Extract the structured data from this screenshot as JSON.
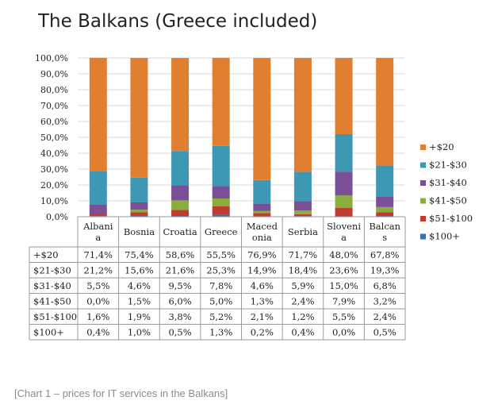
{
  "page": {
    "title": "The Balkans (Greece included)",
    "caption": "[Chart 1 – prices for IT services in the Balkans]"
  },
  "colors": {
    "+$20": "#e07f30",
    "$21-$30": "#3d98b5",
    "$31-$40": "#7b4f96",
    "$41-$50": "#8aad3c",
    "$51-$100": "#c13b30",
    "$100+": "#3c6fb0"
  },
  "chart_data": {
    "type": "bar",
    "stacked": true,
    "normalized": true,
    "categories": [
      "Albania",
      "Bosnia",
      "Croatia",
      "Greece",
      "Macedonia",
      "Serbia",
      "Slovenia",
      "Balcans"
    ],
    "category_labels": [
      [
        "Albani",
        "a"
      ],
      [
        "Bosnia"
      ],
      [
        "Croatia"
      ],
      [
        "Greece"
      ],
      [
        "Maced",
        "onia"
      ],
      [
        "Serbia"
      ],
      [
        "Sloveni",
        "a"
      ],
      [
        "Balcan",
        "s"
      ]
    ],
    "yticks": [
      "0,0%",
      "10,0%",
      "20,0%",
      "30,0%",
      "40,0%",
      "50,0%",
      "60,0%",
      "70,0%",
      "80,0%",
      "90,0%",
      "100,0%"
    ],
    "ylim": [
      0,
      100
    ],
    "grid": true,
    "legend_position": "right",
    "series": [
      {
        "name": "$100+",
        "values": [
          0.4,
          1.0,
          0.5,
          1.3,
          0.2,
          0.4,
          0.0,
          0.5
        ],
        "labels": [
          "0,4%",
          "1,0%",
          "0,5%",
          "1,3%",
          "0,2%",
          "0,4%",
          "0,0%",
          "0,5%"
        ]
      },
      {
        "name": "$51-$100",
        "values": [
          1.6,
          1.9,
          3.8,
          5.2,
          2.1,
          1.2,
          5.5,
          2.4
        ],
        "labels": [
          "1,6%",
          "1,9%",
          "3,8%",
          "5,2%",
          "2,1%",
          "1,2%",
          "5,5%",
          "2,4%"
        ]
      },
      {
        "name": "$41-$50",
        "values": [
          0.0,
          1.5,
          6.0,
          5.0,
          1.3,
          2.4,
          7.9,
          3.2
        ],
        "labels": [
          "0,0%",
          "1,5%",
          "6,0%",
          "5,0%",
          "1,3%",
          "2,4%",
          "7,9%",
          "3,2%"
        ]
      },
      {
        "name": "$31-$40",
        "values": [
          5.5,
          4.6,
          9.5,
          7.8,
          4.6,
          5.9,
          15.0,
          6.8
        ],
        "labels": [
          "5,5%",
          "4,6%",
          "9,5%",
          "7,8%",
          "4,6%",
          "5,9%",
          "15,0%",
          "6,8%"
        ]
      },
      {
        "name": "$21-$30",
        "values": [
          21.2,
          15.6,
          21.6,
          25.3,
          14.9,
          18.4,
          23.6,
          19.3
        ],
        "labels": [
          "21,2%",
          "15,6%",
          "21,6%",
          "25,3%",
          "14,9%",
          "18,4%",
          "23,6%",
          "19,3%"
        ]
      },
      {
        "name": "+$20",
        "values": [
          71.4,
          75.4,
          58.6,
          55.5,
          76.9,
          71.7,
          48.0,
          67.8
        ],
        "labels": [
          "71,4%",
          "75,4%",
          "58,6%",
          "55,5%",
          "76,9%",
          "71,7%",
          "48,0%",
          "67,8%"
        ]
      }
    ],
    "table_row_order": [
      "+$20",
      "$21-$30",
      "$31-$40",
      "$41-$50",
      "$51-$100",
      "$100+"
    ],
    "legend_order": [
      "+$20",
      "$21-$30",
      "$31-$40",
      "$41-$50",
      "$51-$100",
      "$100+"
    ]
  }
}
